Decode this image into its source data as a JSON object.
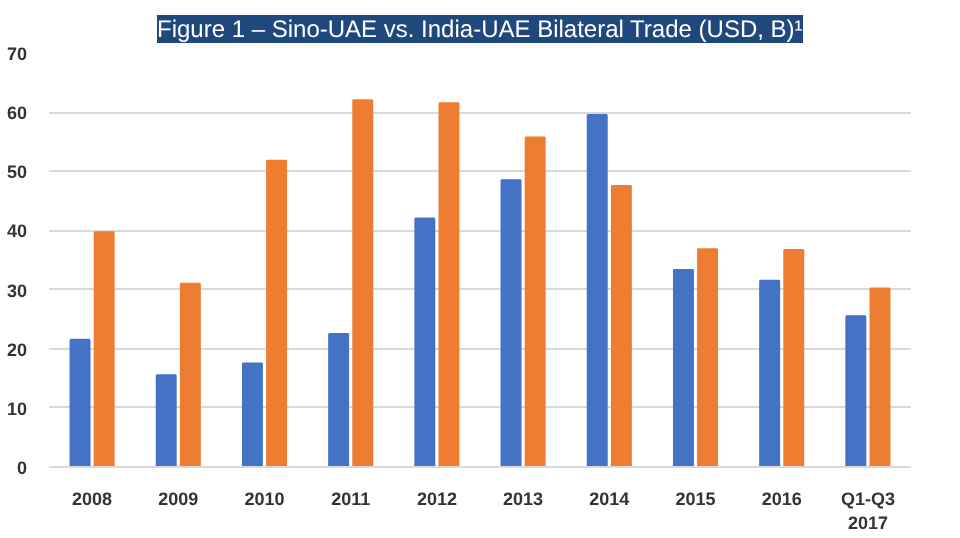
{
  "chart_data": {
    "type": "bar",
    "title": "Figure 1 – Sino-UAE vs. India-UAE Bilateral Trade (USD, B)¹",
    "categories": [
      "2008",
      "2009",
      "2010",
      "2011",
      "2012",
      "2013",
      "2014",
      "2015",
      "2016",
      "Q1-Q3 2017"
    ],
    "series": [
      {
        "color": "#4472c4",
        "values": [
          21.5,
          15.5,
          17.5,
          22.5,
          42,
          48.5,
          59.5,
          33.3,
          31.5,
          25.5
        ]
      },
      {
        "color": "#ed7d31",
        "values": [
          39.7,
          31,
          51.8,
          62,
          61.5,
          55.7,
          47.5,
          36.8,
          36.7,
          30.2
        ]
      }
    ],
    "ylim": [
      0,
      70
    ],
    "yticks": [
      0,
      10,
      20,
      30,
      40,
      50,
      60,
      70
    ],
    "grid": "y"
  }
}
